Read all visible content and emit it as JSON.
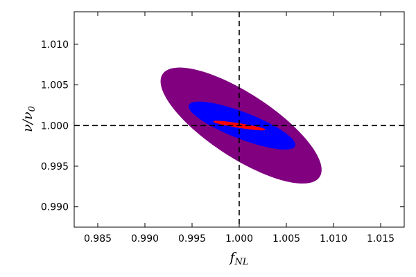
{
  "chart_data": {
    "type": "contour",
    "xlabel": "f_NL",
    "ylabel": "ν/ν₀",
    "xlim": [
      0.9825,
      1.0175
    ],
    "ylim": [
      0.9875,
      1.014
    ],
    "x_ticks": [
      {
        "value": 0.985,
        "label": "0.985"
      },
      {
        "value": 0.99,
        "label": "0.990"
      },
      {
        "value": 0.995,
        "label": "0.995"
      },
      {
        "value": 1.0,
        "label": "1.000"
      },
      {
        "value": 1.005,
        "label": "1.005"
      },
      {
        "value": 1.01,
        "label": "1.010"
      },
      {
        "value": 1.015,
        "label": "1.015"
      }
    ],
    "y_ticks": [
      {
        "value": 0.99,
        "label": "0.990"
      },
      {
        "value": 0.995,
        "label": "0.995"
      },
      {
        "value": 1.0,
        "label": "1.000"
      },
      {
        "value": 1.005,
        "label": "1.005"
      },
      {
        "value": 1.01,
        "label": "1.010"
      }
    ],
    "reference_lines": {
      "x": 1.0,
      "y": 1.0,
      "style": "dashed",
      "color": "#000000"
    },
    "ellipses": [
      {
        "center": [
          1.0002,
          1.0
        ],
        "endpoint_a": [
          0.9919,
          1.0063
        ],
        "endpoint_b": [
          1.0085,
          0.9937
        ],
        "half_width": 0.0039,
        "color": "#800080"
      },
      {
        "center": [
          1.0003,
          1.0
        ],
        "endpoint_a": [
          0.9947,
          1.0025
        ],
        "endpoint_b": [
          1.0059,
          0.9975
        ],
        "half_width": 0.0016,
        "color": "#0000ff"
      },
      {
        "center": [
          1.0,
          1.0
        ],
        "endpoint_a": [
          0.9973,
          1.0005
        ],
        "endpoint_b": [
          1.0027,
          0.9995
        ],
        "half_width": 0.00024,
        "color": "#ff0000"
      }
    ],
    "grid": false
  }
}
